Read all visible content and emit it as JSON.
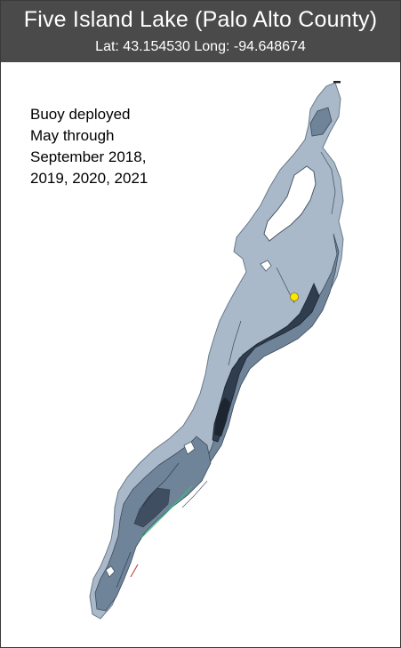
{
  "header": {
    "title": "Five Island Lake (Palo Alto County)",
    "coordinates": "Lat: 43.154530 Long: -94.648674"
  },
  "note": {
    "lines": [
      "Buoy deployed",
      "May through",
      "September 2018,",
      "2019, 2020, 2021"
    ]
  },
  "map": {
    "colors": {
      "shallow": "#a9b9c9",
      "mid": "#6f8399",
      "deep": "#2f3d4e",
      "deepest": "#1c2530",
      "island": "#ffffff",
      "buoy": "#ffe800",
      "shoreline_accent": "#3ec07a"
    },
    "markers": [
      {
        "name": "buoy-location",
        "icon": "yellow-dot"
      }
    ]
  }
}
